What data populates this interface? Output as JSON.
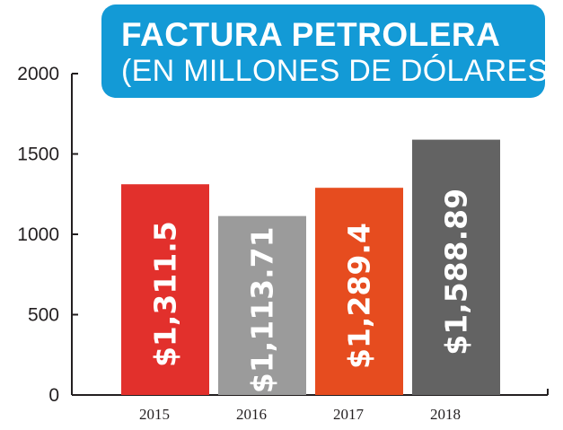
{
  "title": {
    "line1": "FACTURA PETROLERA",
    "line2": "(EN MILLONES DE DÓLARES)"
  },
  "chart_data": {
    "type": "bar",
    "title": "FACTURA PETROLERA (EN MILLONES DE DÓLARES)",
    "xlabel": "",
    "ylabel": "",
    "categories": [
      "2015",
      "2016",
      "2017",
      "2018"
    ],
    "values": [
      1311.5,
      1113.71,
      1289.4,
      1588.89
    ],
    "data_labels": [
      "$1,311.5",
      "$1,113.71",
      "$1,289.4",
      "$1,588.89"
    ],
    "colors": [
      "#e2302c",
      "#9b9b9b",
      "#e64c1f",
      "#636363"
    ],
    "ylim": [
      0,
      2000
    ],
    "yticks": [
      0,
      500,
      1000,
      1500,
      2000
    ],
    "grid": false,
    "legend": "none"
  }
}
